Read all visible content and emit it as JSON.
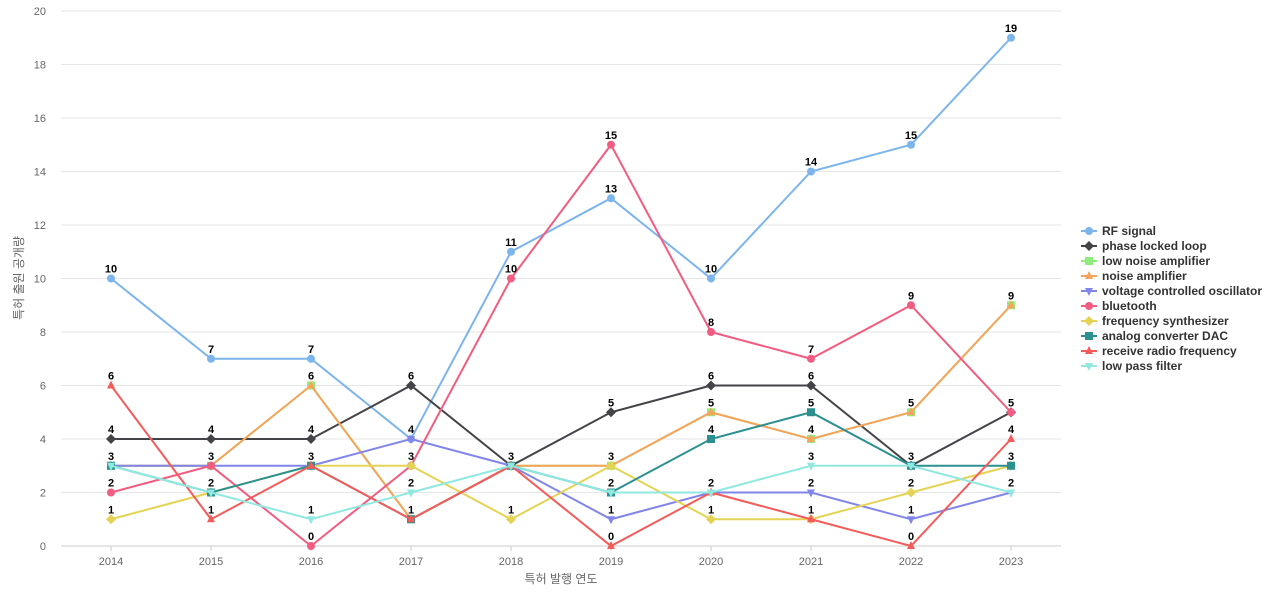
{
  "chart_data": {
    "type": "line",
    "xlabel": "특허 발행 연도",
    "ylabel": "특허 출원 공개량",
    "x": [
      "2014",
      "2015",
      "2016",
      "2017",
      "2018",
      "2019",
      "2020",
      "2021",
      "2022",
      "2023"
    ],
    "ylim": [
      0,
      20
    ],
    "yticks": [
      0,
      2,
      4,
      6,
      8,
      10,
      12,
      14,
      16,
      18,
      20
    ],
    "grid": true,
    "legend_position": "right",
    "series": [
      {
        "name": "RF signal",
        "color": "#7cb5ec",
        "marker": "circle",
        "values": [
          10,
          7,
          7,
          4,
          11,
          13,
          10,
          14,
          15,
          19
        ]
      },
      {
        "name": "phase locked loop",
        "color": "#434348",
        "marker": "diamond",
        "values": [
          4,
          4,
          4,
          6,
          3,
          5,
          6,
          6,
          3,
          5
        ]
      },
      {
        "name": "low noise amplifier",
        "color": "#90ed7d",
        "marker": "square",
        "values": [
          3,
          3,
          6,
          1,
          3,
          3,
          5,
          4,
          5,
          9
        ]
      },
      {
        "name": "noise amplifier",
        "color": "#f7a35c",
        "marker": "triangle",
        "values": [
          3,
          3,
          6,
          1,
          3,
          3,
          5,
          4,
          5,
          9
        ]
      },
      {
        "name": "voltage controlled oscillator",
        "color": "#8085e9",
        "marker": "triangle-down",
        "values": [
          3,
          3,
          3,
          4,
          3,
          1,
          2,
          2,
          1,
          2
        ]
      },
      {
        "name": "bluetooth",
        "color": "#f15c80",
        "marker": "circle",
        "values": [
          2,
          3,
          0,
          3,
          10,
          15,
          8,
          7,
          9,
          5
        ]
      },
      {
        "name": "frequency synthesizer",
        "color": "#e4d354",
        "marker": "diamond",
        "values": [
          1,
          2,
          3,
          3,
          1,
          3,
          1,
          1,
          2,
          3
        ]
      },
      {
        "name": "analog converter DAC",
        "color": "#2b908f",
        "marker": "square",
        "values": [
          3,
          2,
          3,
          1,
          3,
          2,
          4,
          5,
          3,
          3
        ]
      },
      {
        "name": "receive radio frequency",
        "color": "#f45b5b",
        "marker": "triangle",
        "values": [
          6,
          1,
          3,
          1,
          3,
          0,
          2,
          1,
          0,
          4
        ]
      },
      {
        "name": "low pass filter",
        "color": "#91e8e1",
        "marker": "triangle-down",
        "values": [
          3,
          2,
          1,
          2,
          3,
          2,
          2,
          3,
          3,
          2
        ]
      }
    ],
    "data_labels": [
      {
        "x": "2014",
        "y": 10,
        "text": "10"
      },
      {
        "x": "2014",
        "y": 6,
        "text": "6"
      },
      {
        "x": "2014",
        "y": 4,
        "text": "4"
      },
      {
        "x": "2014",
        "y": 3,
        "text": "3"
      },
      {
        "x": "2014",
        "y": 2,
        "text": "2"
      },
      {
        "x": "2014",
        "y": 1,
        "text": "1"
      },
      {
        "x": "2015",
        "y": 7,
        "text": "7"
      },
      {
        "x": "2015",
        "y": 4,
        "text": "4"
      },
      {
        "x": "2015",
        "y": 3,
        "text": "3"
      },
      {
        "x": "2015",
        "y": 2,
        "text": "2"
      },
      {
        "x": "2015",
        "y": 1,
        "text": "1"
      },
      {
        "x": "2016",
        "y": 7,
        "text": "7"
      },
      {
        "x": "2016",
        "y": 6,
        "text": "6"
      },
      {
        "x": "2016",
        "y": 4,
        "text": "4"
      },
      {
        "x": "2016",
        "y": 3,
        "text": "3"
      },
      {
        "x": "2016",
        "y": 1,
        "text": "1"
      },
      {
        "x": "2016",
        "y": 0,
        "text": "0"
      },
      {
        "x": "2017",
        "y": 6,
        "text": "6"
      },
      {
        "x": "2017",
        "y": 4,
        "text": "4"
      },
      {
        "x": "2017",
        "y": 3,
        "text": "3"
      },
      {
        "x": "2017",
        "y": 2,
        "text": "2"
      },
      {
        "x": "2017",
        "y": 1,
        "text": "1"
      },
      {
        "x": "2018",
        "y": 11,
        "text": "11"
      },
      {
        "x": "2018",
        "y": 10,
        "text": "10"
      },
      {
        "x": "2018",
        "y": 3,
        "text": "3"
      },
      {
        "x": "2018",
        "y": 1,
        "text": "1"
      },
      {
        "x": "2019",
        "y": 15,
        "text": "15"
      },
      {
        "x": "2019",
        "y": 13,
        "text": "13"
      },
      {
        "x": "2019",
        "y": 5,
        "text": "5"
      },
      {
        "x": "2019",
        "y": 3,
        "text": "3"
      },
      {
        "x": "2019",
        "y": 2,
        "text": "2"
      },
      {
        "x": "2019",
        "y": 1,
        "text": "1"
      },
      {
        "x": "2019",
        "y": 0,
        "text": "0"
      },
      {
        "x": "2020",
        "y": 10,
        "text": "10"
      },
      {
        "x": "2020",
        "y": 8,
        "text": "8"
      },
      {
        "x": "2020",
        "y": 6,
        "text": "6"
      },
      {
        "x": "2020",
        "y": 5,
        "text": "5"
      },
      {
        "x": "2020",
        "y": 4,
        "text": "4"
      },
      {
        "x": "2020",
        "y": 2,
        "text": "2"
      },
      {
        "x": "2020",
        "y": 1,
        "text": "1"
      },
      {
        "x": "2021",
        "y": 14,
        "text": "14"
      },
      {
        "x": "2021",
        "y": 7,
        "text": "7"
      },
      {
        "x": "2021",
        "y": 6,
        "text": "6"
      },
      {
        "x": "2021",
        "y": 5,
        "text": "5"
      },
      {
        "x": "2021",
        "y": 4,
        "text": "4"
      },
      {
        "x": "2021",
        "y": 3,
        "text": "3"
      },
      {
        "x": "2021",
        "y": 2,
        "text": "2"
      },
      {
        "x": "2021",
        "y": 1,
        "text": "1"
      },
      {
        "x": "2022",
        "y": 15,
        "text": "15"
      },
      {
        "x": "2022",
        "y": 9,
        "text": "9"
      },
      {
        "x": "2022",
        "y": 5,
        "text": "5"
      },
      {
        "x": "2022",
        "y": 3,
        "text": "3"
      },
      {
        "x": "2022",
        "y": 2,
        "text": "2"
      },
      {
        "x": "2022",
        "y": 1,
        "text": "1"
      },
      {
        "x": "2022",
        "y": 0,
        "text": "0"
      },
      {
        "x": "2023",
        "y": 19,
        "text": "19"
      },
      {
        "x": "2023",
        "y": 9,
        "text": "9"
      },
      {
        "x": "2023",
        "y": 5,
        "text": "5"
      },
      {
        "x": "2023",
        "y": 4,
        "text": "4"
      },
      {
        "x": "2023",
        "y": 3,
        "text": "3"
      },
      {
        "x": "2023",
        "y": 2,
        "text": "2"
      }
    ]
  }
}
